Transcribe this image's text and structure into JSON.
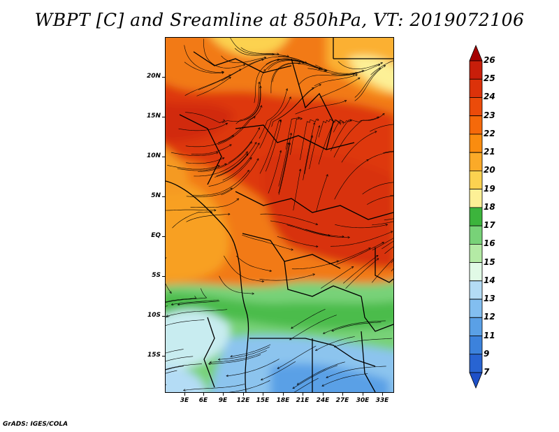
{
  "title": "WBPT [C] and Sreamline at 850hPa, VT: 2019072106",
  "footer": "GrADS: IGES/COLA",
  "lat_labels": [
    "20N",
    "15N",
    "10N",
    "5N",
    "EQ",
    "5S",
    "10S",
    "15S"
  ],
  "lon_labels": [
    "3E",
    "6E",
    "9E",
    "12E",
    "15E",
    "18E",
    "21E",
    "24E",
    "27E",
    "30E",
    "33E"
  ],
  "colorbar": {
    "labels": [
      "26",
      "25",
      "24",
      "23",
      "22",
      "21",
      "20",
      "19",
      "18",
      "17",
      "16",
      "15",
      "14",
      "13",
      "12",
      "11",
      "9",
      "7"
    ],
    "colors": [
      "#a50000",
      "#c81e0a",
      "#dc320a",
      "#eb4b0a",
      "#f5690a",
      "#fa8c0f",
      "#fbaa28",
      "#fcd250",
      "#fdf096",
      "#3cb43c",
      "#78d278",
      "#b4eaa5",
      "#e1fae6",
      "#b4dcf5",
      "#82bef0",
      "#5aa0e6",
      "#3c82dc",
      "#2864d2",
      "#1e50c8"
    ]
  },
  "map": {
    "variable": "wet-bulb potential temperature",
    "level": "850hPa",
    "valid_time": "2019072106"
  }
}
